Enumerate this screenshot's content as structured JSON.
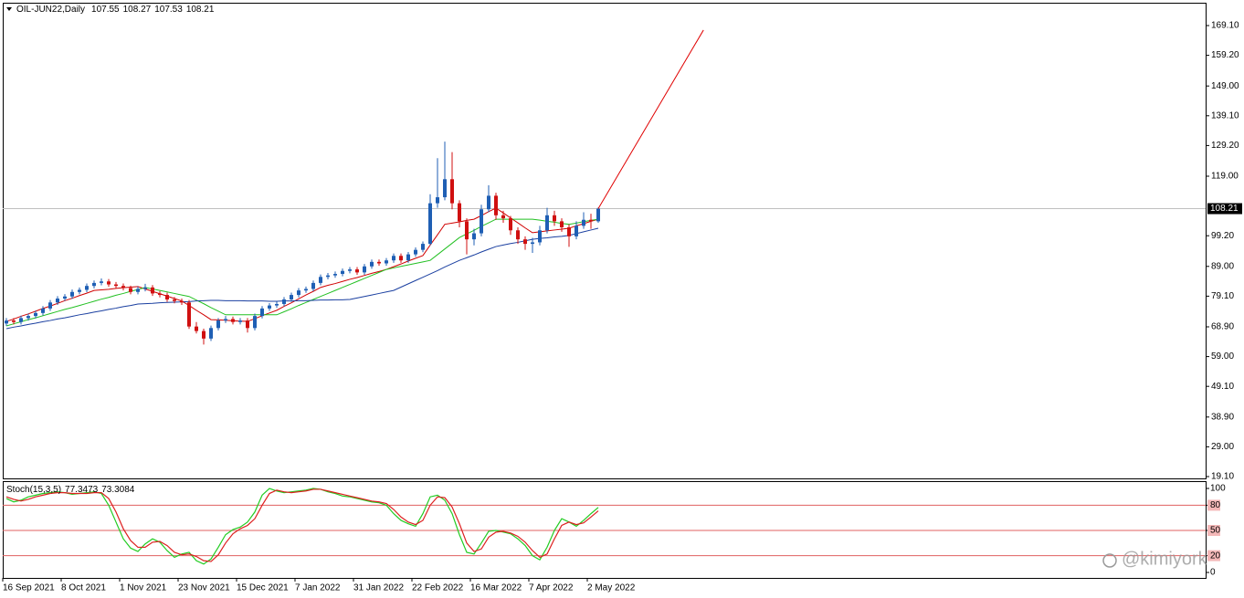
{
  "chart_data": {
    "type": "candlestick",
    "symbol": "OIL-JUN22,Daily",
    "ohlc_header": [
      107.55,
      108.27,
      107.53,
      108.21
    ],
    "categories": [
      "16 Sep 2021",
      null,
      null,
      null,
      null,
      null,
      null,
      null,
      "8 Oct 2021",
      null,
      null,
      null,
      null,
      null,
      null,
      null,
      "1 Nov 2021",
      null,
      null,
      null,
      null,
      null,
      null,
      null,
      "23 Nov 2021",
      null,
      null,
      null,
      null,
      null,
      null,
      null,
      "15 Dec 2021",
      null,
      null,
      null,
      null,
      null,
      null,
      null,
      "7 Jan 2022",
      null,
      null,
      null,
      null,
      null,
      null,
      null,
      "31 Jan 2022",
      null,
      null,
      null,
      null,
      null,
      null,
      null,
      "22 Feb 2022",
      null,
      null,
      null,
      null,
      null,
      null,
      null,
      "16 Mar 2022",
      null,
      null,
      null,
      null,
      null,
      null,
      null,
      "7 Apr 2022",
      null,
      null,
      null,
      null,
      null,
      null,
      null,
      "2 May 2022",
      null
    ],
    "ohlc": [
      [
        70.0,
        71.8,
        69.2,
        71.0
      ],
      [
        71.0,
        71.8,
        69.7,
        70.5
      ],
      [
        70.5,
        72.6,
        69.7,
        71.8
      ],
      [
        71.8,
        73.3,
        71.0,
        72.5
      ],
      [
        72.5,
        74.3,
        71.7,
        73.5
      ],
      [
        73.5,
        75.8,
        72.7,
        75.0
      ],
      [
        75.0,
        77.8,
        74.2,
        77.0
      ],
      [
        77.0,
        79.1,
        76.2,
        78.3
      ],
      [
        78.3,
        79.8,
        77.5,
        79.0
      ],
      [
        79.0,
        81.3,
        78.2,
        80.5
      ],
      [
        80.5,
        82.0,
        79.7,
        81.2
      ],
      [
        81.2,
        83.3,
        80.4,
        82.5
      ],
      [
        82.5,
        84.3,
        81.7,
        83.5
      ],
      [
        83.5,
        85.0,
        82.7,
        84.0
      ],
      [
        84.0,
        84.8,
        82.2,
        83.0
      ],
      [
        83.0,
        83.8,
        81.7,
        82.5
      ],
      [
        82.5,
        83.3,
        81.0,
        81.8
      ],
      [
        81.8,
        82.6,
        79.7,
        80.5
      ],
      [
        80.5,
        82.3,
        79.7,
        81.5
      ],
      [
        81.5,
        83.2,
        80.7,
        82.0
      ],
      [
        82.0,
        82.8,
        79.2,
        80.0
      ],
      [
        80.0,
        80.8,
        78.7,
        79.5
      ],
      [
        79.5,
        80.3,
        77.2,
        78.0
      ],
      [
        78.0,
        78.8,
        76.7,
        77.5
      ],
      [
        77.5,
        78.3,
        76.2,
        77.0
      ],
      [
        77.0,
        77.8,
        68.2,
        69.0
      ],
      [
        69.0,
        70.5,
        66.7,
        67.5
      ],
      [
        67.5,
        68.3,
        63.0,
        65.0
      ],
      [
        65.0,
        69.3,
        64.2,
        68.5
      ],
      [
        68.5,
        71.8,
        67.7,
        71.0
      ],
      [
        71.0,
        72.5,
        70.2,
        71.5
      ],
      [
        71.5,
        72.3,
        69.7,
        70.5
      ],
      [
        70.5,
        71.8,
        69.7,
        71.0
      ],
      [
        71.0,
        71.8,
        67.0,
        68.5
      ],
      [
        68.5,
        73.3,
        67.7,
        72.5
      ],
      [
        72.5,
        75.8,
        71.7,
        75.0
      ],
      [
        75.0,
        76.8,
        74.2,
        76.0
      ],
      [
        76.0,
        77.3,
        75.2,
        76.5
      ],
      [
        76.5,
        78.8,
        75.7,
        78.0
      ],
      [
        78.0,
        80.3,
        77.2,
        79.5
      ],
      [
        79.5,
        81.8,
        78.7,
        81.0
      ],
      [
        81.0,
        82.3,
        80.2,
        81.5
      ],
      [
        81.5,
        84.3,
        80.7,
        83.5
      ],
      [
        83.5,
        86.3,
        82.7,
        85.5
      ],
      [
        85.5,
        86.8,
        84.7,
        86.0
      ],
      [
        86.0,
        87.3,
        85.2,
        86.5
      ],
      [
        86.5,
        88.3,
        85.7,
        87.5
      ],
      [
        87.5,
        88.8,
        86.7,
        88.0
      ],
      [
        88.0,
        88.8,
        86.2,
        87.0
      ],
      [
        87.0,
        89.8,
        86.2,
        89.0
      ],
      [
        89.0,
        91.3,
        88.2,
        90.5
      ],
      [
        90.5,
        91.3,
        89.2,
        90.0
      ],
      [
        90.0,
        91.8,
        89.2,
        91.0
      ],
      [
        91.0,
        93.3,
        90.2,
        92.5
      ],
      [
        92.5,
        93.3,
        90.2,
        91.0
      ],
      [
        91.0,
        93.8,
        90.2,
        93.0
      ],
      [
        93.0,
        95.3,
        92.2,
        94.5
      ],
      [
        94.5,
        97.3,
        93.7,
        96.5
      ],
      [
        96.5,
        113.0,
        96.0,
        110.0
      ],
      [
        110.0,
        125.0,
        108.5,
        112.0
      ],
      [
        112.0,
        130.5,
        111.0,
        118.0
      ],
      [
        118.0,
        127.0,
        108.0,
        110.0
      ],
      [
        110.0,
        111.0,
        102.0,
        104.0
      ],
      [
        104.0,
        105.0,
        93.0,
        98.0
      ],
      [
        98.0,
        101.5,
        96.0,
        100.0
      ],
      [
        100.0,
        109.5,
        99.0,
        108.0
      ],
      [
        108.0,
        116.0,
        107.0,
        112.5
      ],
      [
        112.5,
        113.5,
        104.5,
        106.0
      ],
      [
        106.0,
        107.5,
        103.5,
        105.0
      ],
      [
        105.0,
        105.8,
        99.5,
        101.0
      ],
      [
        101.0,
        102.0,
        96.5,
        98.0
      ],
      [
        98.0,
        99.0,
        94.5,
        96.5
      ],
      [
        96.5,
        98.5,
        93.5,
        97.0
      ],
      [
        97.0,
        102.5,
        96.0,
        101.0
      ],
      [
        101.0,
        108.5,
        100.0,
        106.0
      ],
      [
        106.0,
        107.5,
        102.5,
        104.0
      ],
      [
        104.0,
        105.0,
        100.5,
        102.0
      ],
      [
        102.0,
        103.0,
        95.5,
        99.0
      ],
      [
        99.0,
        104.0,
        98.0,
        102.5
      ],
      [
        102.5,
        107.0,
        101.5,
        104.5
      ],
      [
        104.5,
        106.5,
        101.5,
        104.0
      ],
      [
        104.0,
        108.6,
        103.5,
        108.21
      ]
    ],
    "up_color": "#1f5fb4",
    "down_color": "#d01010",
    "moving_averages": [
      {
        "color": "#d00000",
        "values": [
          70.7,
          71.5,
          72.4,
          73.2,
          74.1,
          75.0,
          75.8,
          76.7,
          77.6,
          78.4,
          79.3,
          80.1,
          81.0,
          81.2,
          81.4,
          81.7,
          81.9,
          82.1,
          82.3,
          81.5,
          80.7,
          79.9,
          79.1,
          78.3,
          77.5,
          76.0,
          74.4,
          72.9,
          71.3,
          71.2,
          71.1,
          70.9,
          70.8,
          70.7,
          71.6,
          72.6,
          73.5,
          74.4,
          75.7,
          76.9,
          78.2,
          79.5,
          80.7,
          82.0,
          82.7,
          83.3,
          84.0,
          84.7,
          85.3,
          86.0,
          86.7,
          87.3,
          88.0,
          88.9,
          89.8,
          90.8,
          91.7,
          92.6,
          96.1,
          99.5,
          103.0,
          103.4,
          103.8,
          104.3,
          104.7,
          105.9,
          107.2,
          108.4,
          106.8,
          105.1,
          103.5,
          101.8,
          100.2,
          100.5,
          100.8,
          101.1,
          101.4,
          101.7,
          102.5,
          103.2,
          104.0,
          104.7
        ]
      },
      {
        "color": "#22c022",
        "values": [
          69.2,
          69.9,
          70.6,
          71.3,
          71.9,
          72.6,
          73.3,
          74.0,
          74.7,
          75.3,
          76.0,
          76.7,
          77.4,
          78.1,
          78.7,
          79.4,
          80.0,
          80.7,
          81.3,
          82.0,
          81.5,
          81.0,
          80.5,
          80.0,
          79.5,
          79.0,
          77.8,
          76.6,
          75.3,
          74.1,
          72.9,
          72.9,
          72.9,
          72.9,
          72.9,
          72.9,
          72.9,
          72.9,
          73.9,
          74.9,
          76.0,
          77.0,
          78.0,
          79.0,
          80.0,
          81.0,
          82.0,
          83.0,
          84.0,
          85.0,
          86.0,
          87.0,
          88.0,
          88.5,
          89.0,
          89.5,
          90.0,
          90.5,
          91.0,
          92.9,
          94.8,
          96.7,
          98.6,
          99.8,
          101.0,
          102.3,
          103.5,
          104.7,
          104.7,
          104.7,
          104.7,
          104.7,
          104.7,
          104.4,
          104.0,
          103.7,
          103.3,
          103.0,
          103.4,
          103.9,
          104.3,
          104.7
        ]
      },
      {
        "color": "#1a3fa0",
        "values": [
          68.3,
          68.8,
          69.2,
          69.7,
          70.1,
          70.6,
          71.0,
          71.5,
          71.9,
          72.4,
          72.9,
          73.3,
          73.8,
          74.2,
          74.7,
          75.1,
          75.6,
          76.0,
          76.5,
          76.6,
          76.7,
          76.9,
          77.0,
          77.1,
          77.2,
          77.3,
          77.5,
          77.6,
          77.7,
          77.7,
          77.6,
          77.6,
          77.6,
          77.5,
          77.5,
          77.5,
          77.4,
          77.4,
          77.5,
          77.5,
          77.6,
          77.6,
          77.7,
          77.8,
          77.8,
          77.9,
          77.9,
          78.0,
          78.5,
          79.0,
          79.5,
          80.0,
          80.5,
          81.0,
          82.1,
          83.2,
          84.3,
          85.4,
          86.5,
          87.6,
          88.8,
          89.9,
          91.0,
          91.9,
          92.8,
          93.8,
          94.7,
          95.6,
          96.1,
          96.6,
          97.0,
          97.5,
          98.0,
          98.3,
          98.5,
          98.8,
          99.0,
          99.3,
          99.9,
          100.5,
          101.1,
          101.7
        ]
      }
    ],
    "ylim": [
      18.49,
      176.69
    ],
    "yticks": [
      {
        "value": 169.1,
        "label": "169.10"
      },
      {
        "value": 159.2,
        "label": "159.20"
      },
      {
        "value": 149,
        "label": "149.00"
      },
      {
        "value": 139.1,
        "label": "139.10"
      },
      {
        "value": 129.2,
        "label": "129.20"
      },
      {
        "value": 119,
        "label": "119.00"
      },
      {
        "value": 99.2,
        "label": "99.20"
      },
      {
        "value": 89,
        "label": "89.00"
      },
      {
        "value": 79.1,
        "label": "79.10"
      },
      {
        "value": 68.9,
        "label": "68.90"
      },
      {
        "value": 59,
        "label": "59.00"
      },
      {
        "value": 49.1,
        "label": "49.10"
      },
      {
        "value": 38.9,
        "label": "38.90"
      },
      {
        "value": 29,
        "label": "29.00"
      },
      {
        "value": 19.1,
        "label": "19.10"
      }
    ],
    "current_price": 108.21,
    "trendline": {
      "color": "#e00000",
      "x": [
        81,
        95.4
      ],
      "y": [
        108.21,
        167.6
      ]
    },
    "stochastic": {
      "title": "Stoch(15,3,5)",
      "header_values": [
        77.3473,
        73.3084
      ],
      "ylim": [
        -6.5,
        108.7
      ],
      "yticks": [
        100,
        80,
        50,
        20,
        0
      ],
      "levels": [
        80,
        50,
        20
      ],
      "level_color": "#e06060",
      "series": [
        {
          "color": "#22cc22",
          "values": [
            88,
            84,
            86,
            90,
            92,
            94,
            95,
            96,
            95,
            93,
            94,
            95,
            96,
            94,
            80,
            60,
            40,
            29,
            25,
            34,
            40,
            36,
            26,
            18,
            22,
            24,
            14,
            10,
            16,
            30,
            45,
            51,
            54,
            60,
            72,
            92,
            100,
            97,
            95,
            96,
            97,
            98,
            100,
            99,
            96,
            94,
            91,
            90,
            88,
            86,
            84,
            83,
            80,
            70,
            62,
            58,
            55,
            70,
            90,
            92,
            86,
            70,
            45,
            24,
            22,
            35,
            49,
            50,
            48,
            46,
            40,
            32,
            20,
            15,
            30,
            50,
            64,
            60,
            55,
            62,
            70,
            77.3473
          ]
        },
        {
          "color": "#dd2020",
          "values": [
            90,
            87,
            85,
            87,
            90,
            92,
            94,
            95,
            95,
            94,
            94,
            94,
            95,
            95,
            88,
            72,
            52,
            38,
            30,
            30,
            36,
            37,
            32,
            24,
            21,
            22,
            19,
            14,
            13,
            21,
            35,
            46,
            52,
            56,
            64,
            80,
            94,
            98,
            96,
            95,
            96,
            97,
            99,
            99,
            97,
            95,
            93,
            91,
            89,
            87,
            85,
            84,
            82,
            75,
            66,
            60,
            57,
            62,
            80,
            90,
            89,
            78,
            58,
            35,
            25,
            28,
            42,
            48,
            49,
            47,
            43,
            36,
            26,
            18,
            22,
            40,
            56,
            60,
            57,
            59,
            66,
            73.3084
          ]
        }
      ]
    },
    "watermark": "@kimiyork"
  }
}
